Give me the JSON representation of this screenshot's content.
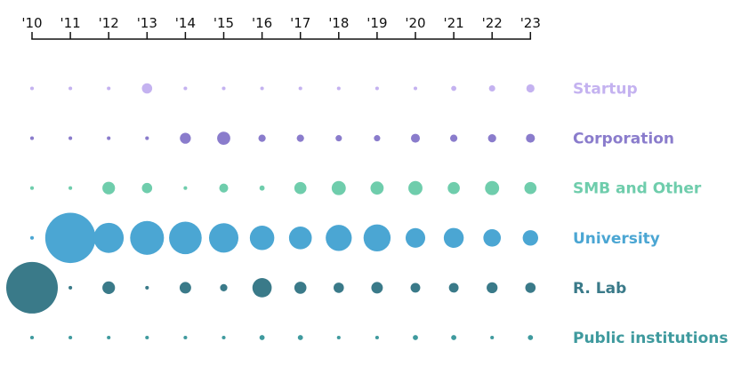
{
  "chart_data": {
    "type": "scatter",
    "subtype": "bubble-grid",
    "title": "",
    "xlabel": "",
    "ylabel": "",
    "x_tick_labels": [
      "'10",
      "'11",
      "'12",
      "'13",
      "'14",
      "'15",
      "'16",
      "'17",
      "'18",
      "'19",
      "'20",
      "'21",
      "'22",
      "'23"
    ],
    "x_axis_position": "top",
    "grid": false,
    "legend": "row labels at right",
    "size_encoding": "relative bubble size (approximate, read from radius)",
    "series": [
      {
        "name": "Startup",
        "color": "#c4b2f0",
        "values": [
          1,
          1,
          1,
          8,
          1,
          1,
          1,
          1,
          1,
          1,
          1,
          2,
          3,
          5
        ]
      },
      {
        "name": "Corporation",
        "color": "#8a7ccc",
        "values": [
          1,
          1,
          1,
          1,
          9,
          13,
          4,
          4,
          3,
          3,
          6,
          4,
          5,
          6
        ]
      },
      {
        "name": "SMB and Other",
        "color": "#6fcdac",
        "values": [
          1,
          1,
          12,
          8,
          1,
          6,
          2,
          11,
          15,
          13,
          15,
          11,
          15,
          11
        ]
      },
      {
        "name": "University",
        "color": "#4ba6d3",
        "values": [
          1,
          190,
          68,
          86,
          80,
          65,
          45,
          39,
          51,
          55,
          29,
          30,
          23,
          18
        ]
      },
      {
        "name": "R. Lab",
        "color": "#3a7a89",
        "values": [
          200,
          1,
          12,
          1,
          10,
          4,
          28,
          11,
          8,
          10,
          7,
          7,
          9,
          8
        ]
      },
      {
        "name": "Public institutions",
        "color": "#3f9a9e",
        "values": [
          1,
          1,
          1,
          1,
          1,
          1,
          2,
          2,
          1,
          1,
          2,
          2,
          1,
          2
        ]
      }
    ]
  }
}
